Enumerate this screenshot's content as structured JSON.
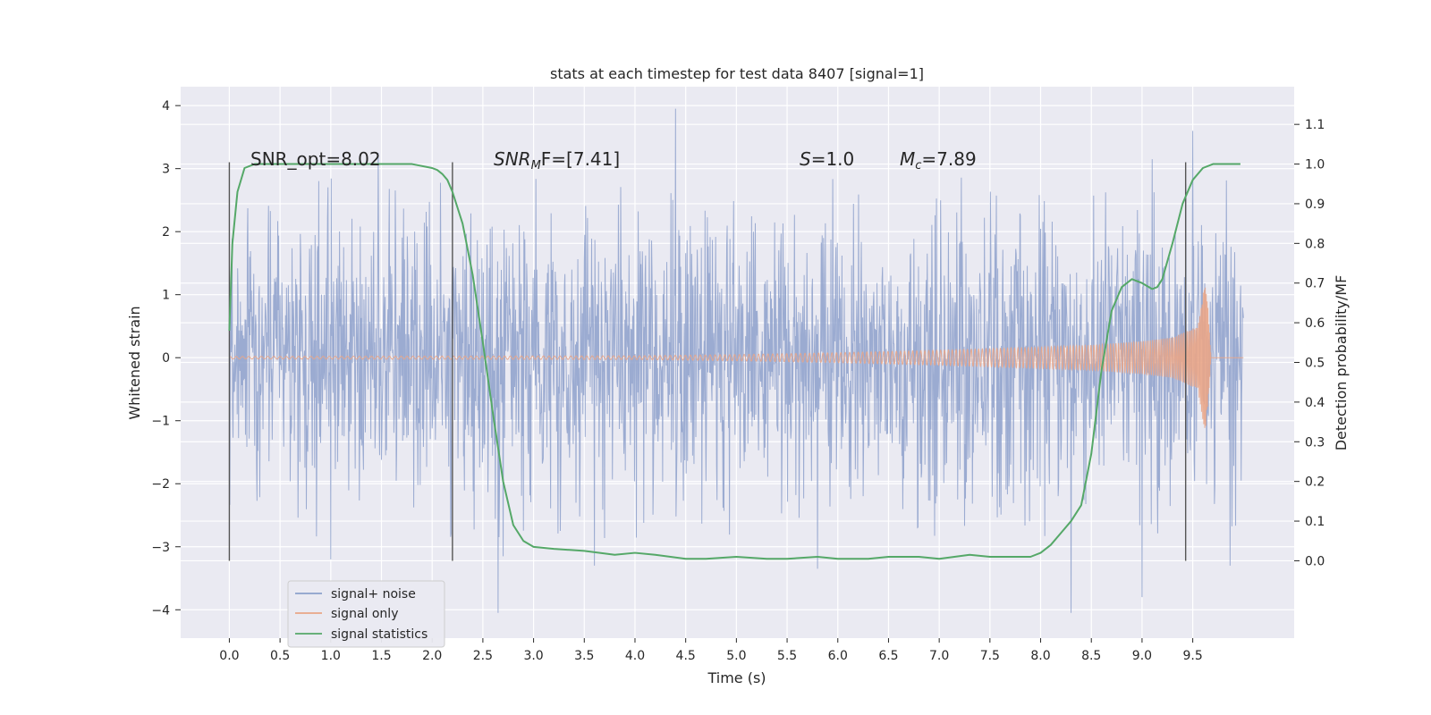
{
  "chart_data": {
    "type": "line",
    "title": "stats at each timestep for test data 8407 [signal=1]",
    "xlabel": "Time (s)",
    "ylabel": "Whitened strain",
    "y2label": "Detection probability/MF",
    "xlim": [
      -0.48,
      10.5
    ],
    "ylim": [
      -4.45,
      4.3
    ],
    "y2lim": [
      -0.195,
      1.195
    ],
    "x_ticks": [
      "0.0",
      "0.5",
      "1.0",
      "1.5",
      "2.0",
      "2.5",
      "3.0",
      "3.5",
      "4.0",
      "4.5",
      "5.0",
      "5.5",
      "6.0",
      "6.5",
      "7.0",
      "7.5",
      "8.0",
      "8.5",
      "9.0",
      "9.5"
    ],
    "x_tick_values": [
      0,
      0.5,
      1,
      1.5,
      2,
      2.5,
      3,
      3.5,
      4,
      4.5,
      5,
      5.5,
      6,
      6.5,
      7,
      7.5,
      8,
      8.5,
      9,
      9.5
    ],
    "y_ticks": [
      "4",
      "3",
      "2",
      "1",
      "0",
      "−1",
      "−2",
      "−3",
      "−4"
    ],
    "y_tick_values": [
      4,
      3,
      2,
      1,
      0,
      -1,
      -2,
      -3,
      -4
    ],
    "y2_ticks": [
      "1.1",
      "1.0",
      "0.9",
      "0.8",
      "0.7",
      "0.6",
      "0.5",
      "0.4",
      "0.3",
      "0.2",
      "0.1",
      "0.0"
    ],
    "y2_tick_values": [
      1.1,
      1.0,
      0.9,
      0.8,
      0.7,
      0.6,
      0.5,
      0.4,
      0.3,
      0.2,
      0.1,
      0.0
    ],
    "grid": true,
    "legend_position": "lower-left",
    "colors": {
      "background": "#eaeaf2",
      "grid": "#ffffff",
      "noise": "#8da0cb",
      "signal": "#e9a587",
      "stats": "#55a868",
      "vline": "#555555"
    },
    "series": [
      {
        "name": "signal+ noise",
        "x_range": [
          0,
          10
        ],
        "typical_band": [
          -1.3,
          1.3
        ],
        "spikes": [
          {
            "x": 4.4,
            "y": 3.95
          },
          {
            "x": 9.5,
            "y": 3.6
          },
          {
            "x": 1.47,
            "y": 3.25
          },
          {
            "x": 9.1,
            "y": 3.15
          },
          {
            "x": 2.7,
            "y": -3.15
          },
          {
            "x": 2.65,
            "y": -4.05
          },
          {
            "x": 8.3,
            "y": -4.05
          },
          {
            "x": 9.0,
            "y": -3.8
          },
          {
            "x": 9.87,
            "y": -3.3
          },
          {
            "x": 1.0,
            "y": -3.2
          },
          {
            "x": 3.6,
            "y": -3.3
          },
          {
            "x": 5.8,
            "y": -3.35
          }
        ]
      },
      {
        "name": "signal only",
        "x_range": [
          0,
          10
        ],
        "envelope": [
          [
            0,
            0.02
          ],
          [
            4,
            0.03
          ],
          [
            5,
            0.05
          ],
          [
            6,
            0.08
          ],
          [
            7,
            0.12
          ],
          [
            8,
            0.17
          ],
          [
            8.5,
            0.2
          ],
          [
            9,
            0.26
          ],
          [
            9.3,
            0.32
          ],
          [
            9.55,
            0.5
          ],
          [
            9.62,
            1.2
          ],
          [
            9.65,
            0.8
          ],
          [
            9.68,
            0.0
          ]
        ]
      },
      {
        "name": "signal statistics",
        "x": [
          0.0,
          0.03,
          0.08,
          0.15,
          0.25,
          0.5,
          1.0,
          1.5,
          1.8,
          2.0,
          2.05,
          2.1,
          2.15,
          2.2,
          2.3,
          2.4,
          2.5,
          2.6,
          2.7,
          2.8,
          2.9,
          3.0,
          3.2,
          3.5,
          3.8,
          4.0,
          4.2,
          4.5,
          4.7,
          5.0,
          5.3,
          5.5,
          5.8,
          6.0,
          6.3,
          6.5,
          6.8,
          7.0,
          7.3,
          7.5,
          7.7,
          7.9,
          8.0,
          8.1,
          8.2,
          8.3,
          8.4,
          8.5,
          8.6,
          8.7,
          8.8,
          8.9,
          9.0,
          9.1,
          9.15,
          9.2,
          9.3,
          9.4,
          9.5,
          9.6,
          9.7,
          9.8,
          9.9,
          9.97
        ],
        "y": [
          0.58,
          0.8,
          0.93,
          0.99,
          1.0,
          1.0,
          1.0,
          1.0,
          1.0,
          0.99,
          0.985,
          0.975,
          0.96,
          0.93,
          0.85,
          0.72,
          0.55,
          0.37,
          0.2,
          0.09,
          0.05,
          0.035,
          0.03,
          0.025,
          0.015,
          0.02,
          0.015,
          0.005,
          0.005,
          0.01,
          0.005,
          0.005,
          0.01,
          0.005,
          0.005,
          0.01,
          0.01,
          0.005,
          0.015,
          0.01,
          0.01,
          0.01,
          0.02,
          0.04,
          0.07,
          0.1,
          0.14,
          0.27,
          0.48,
          0.63,
          0.69,
          0.71,
          0.7,
          0.685,
          0.69,
          0.71,
          0.8,
          0.9,
          0.96,
          0.99,
          1.0,
          1.0,
          1.0,
          1.0
        ]
      }
    ],
    "vlines": [
      0.0,
      2.2,
      9.43
    ],
    "annotations": [
      {
        "text": "SNR_opt=8.02",
        "x": 0.2,
        "y": 3.1
      },
      {
        "base": "SNR",
        "sub": "M",
        "rest": "F=[7.41]",
        "x": 2.6,
        "y": 3.1
      },
      {
        "base": "S",
        "rest": "=1.0",
        "x": 5.6,
        "y": 3.1
      },
      {
        "base": "M",
        "sub": "c",
        "rest": "=7.89",
        "x": 6.6,
        "y": 3.1
      }
    ]
  }
}
